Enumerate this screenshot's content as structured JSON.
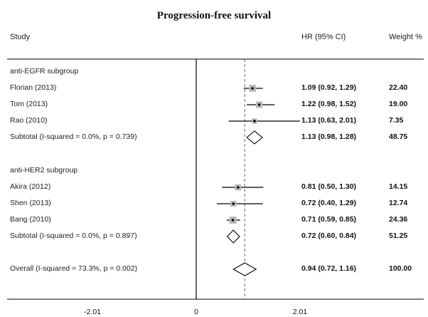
{
  "chart_data": {
    "type": "forest",
    "title": "Progression-free survival",
    "columns": {
      "study": "Study",
      "hr": "HR (95% CI)",
      "weight": "Weight %"
    },
    "null_value": 0,
    "overall_line": 0.94,
    "x_ticks": [
      "-2.01",
      "0",
      "2.01"
    ],
    "xlim": [
      -2.01,
      2.01
    ],
    "rows": [
      {
        "kind": "header",
        "label": "anti-EGFR subgroup"
      },
      {
        "kind": "study",
        "label": "Florian  (2013)",
        "hr": 1.09,
        "lo": 0.92,
        "hi": 1.29,
        "hr_text": "1.09 (0.92, 1.29)",
        "weight_text": "22.40",
        "weight": 22.4
      },
      {
        "kind": "study",
        "label": "Tom (2013)",
        "hr": 1.22,
        "lo": 0.98,
        "hi": 1.52,
        "hr_text": "1.22 (0.98, 1.52)",
        "weight_text": "19.00",
        "weight": 19.0
      },
      {
        "kind": "study",
        "label": "Rao (2010)",
        "hr": 1.13,
        "lo": 0.63,
        "hi": 2.01,
        "hr_text": "1.13 (0.63, 2.01)",
        "weight_text": "7.35",
        "weight": 7.35
      },
      {
        "kind": "subtotal",
        "label": "Subtotal  (I-squared = 0.0%, p = 0.739)",
        "hr": 1.13,
        "lo": 0.98,
        "hi": 1.28,
        "hr_text": "1.13 (0.98, 1.28)",
        "weight_text": "48.75"
      },
      {
        "kind": "spacer"
      },
      {
        "kind": "header",
        "label": "anti-HER2 subgroup"
      },
      {
        "kind": "study",
        "label": "Akira  (2012)",
        "hr": 0.81,
        "lo": 0.5,
        "hi": 1.3,
        "hr_text": "0.81 (0.50, 1.30)",
        "weight_text": "14.15",
        "weight": 14.15
      },
      {
        "kind": "study",
        "label": "Shen (2013)",
        "hr": 0.72,
        "lo": 0.4,
        "hi": 1.29,
        "hr_text": "0.72 (0.40, 1.29)",
        "weight_text": "12.74",
        "weight": 12.74
      },
      {
        "kind": "study",
        "label": "Bang (2010)",
        "hr": 0.71,
        "lo": 0.59,
        "hi": 0.85,
        "hr_text": "0.71 (0.59, 0.85)",
        "weight_text": "24.36",
        "weight": 24.36
      },
      {
        "kind": "subtotal",
        "label": "Subtotal  (I-squared = 0.0%, p = 0.897)",
        "hr": 0.72,
        "lo": 0.6,
        "hi": 0.84,
        "hr_text": "0.72 (0.60, 0.84)",
        "weight_text": "51.25"
      },
      {
        "kind": "spacer"
      },
      {
        "kind": "overall",
        "label": "Overall  (I-squared = 73.3%, p = 0.002)",
        "hr": 0.94,
        "lo": 0.72,
        "hi": 1.16,
        "hr_text": "0.94 (0.72, 1.16)",
        "weight_text": "100.00"
      }
    ],
    "colors": {
      "line": "#000000",
      "box": "#b8b8b8",
      "dashed": "#666666"
    }
  }
}
